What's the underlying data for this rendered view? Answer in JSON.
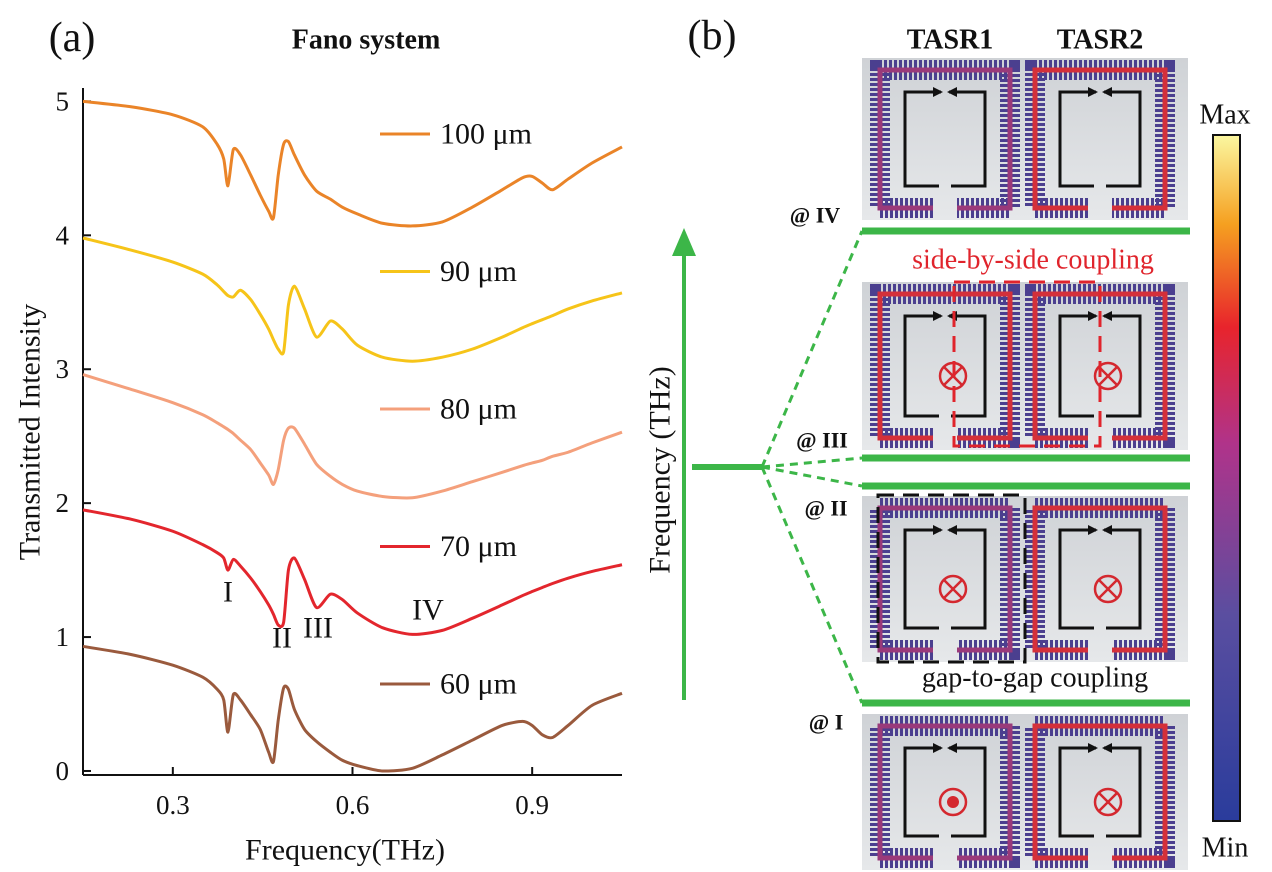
{
  "chart_data": {
    "type": "line",
    "title": "Fano system",
    "xlabel": "Frequency(THz)",
    "ylabel": "Transmitted Intensity",
    "x": [
      0.15,
      0.23,
      0.3,
      0.35,
      0.374,
      0.385,
      0.392,
      0.401,
      0.413,
      0.43,
      0.446,
      0.46,
      0.468,
      0.476,
      0.485,
      0.493,
      0.503,
      0.52,
      0.54,
      0.563,
      0.583,
      0.608,
      0.65,
      0.7,
      0.75,
      0.8,
      0.85,
      0.884,
      0.9,
      0.917,
      0.934,
      0.96,
      1.0,
      1.05
    ],
    "series": [
      {
        "name": "100 μm",
        "color": "#ea8428",
        "values": [
          5.0,
          4.96,
          4.9,
          4.81,
          4.68,
          4.57,
          4.37,
          4.64,
          4.6,
          4.45,
          4.3,
          4.18,
          4.13,
          4.45,
          4.68,
          4.7,
          4.6,
          4.45,
          4.33,
          4.27,
          4.21,
          4.16,
          4.09,
          4.07,
          4.1,
          4.21,
          4.34,
          4.43,
          4.44,
          4.39,
          4.34,
          4.42,
          4.54,
          4.66
        ]
      },
      {
        "name": "90 μm",
        "color": "#f6c419",
        "values": [
          3.98,
          3.89,
          3.8,
          3.71,
          3.63,
          3.58,
          3.55,
          3.54,
          3.59,
          3.52,
          3.41,
          3.3,
          3.22,
          3.15,
          3.13,
          3.48,
          3.62,
          3.45,
          3.24,
          3.36,
          3.3,
          3.18,
          3.09,
          3.06,
          3.09,
          3.15,
          3.24,
          3.31,
          3.34,
          3.37,
          3.4,
          3.45,
          3.51,
          3.57
        ]
      },
      {
        "name": "80 μm",
        "color": "#f4a07c",
        "values": [
          2.96,
          2.85,
          2.75,
          2.66,
          2.6,
          2.57,
          2.55,
          2.52,
          2.47,
          2.4,
          2.3,
          2.21,
          2.14,
          2.25,
          2.47,
          2.56,
          2.56,
          2.44,
          2.29,
          2.2,
          2.14,
          2.09,
          2.05,
          2.04,
          2.09,
          2.16,
          2.23,
          2.28,
          2.3,
          2.32,
          2.35,
          2.38,
          2.45,
          2.53
        ]
      },
      {
        "name": "70 μm",
        "color": "#e3262d",
        "values": [
          1.95,
          1.88,
          1.79,
          1.69,
          1.63,
          1.59,
          1.5,
          1.58,
          1.53,
          1.44,
          1.34,
          1.24,
          1.17,
          1.09,
          1.11,
          1.5,
          1.59,
          1.43,
          1.22,
          1.32,
          1.28,
          1.18,
          1.07,
          1.02,
          1.05,
          1.14,
          1.24,
          1.31,
          1.34,
          1.37,
          1.4,
          1.44,
          1.49,
          1.54
        ]
      },
      {
        "name": "60 μm",
        "color": "#9a5a3d",
        "values": [
          0.93,
          0.87,
          0.79,
          0.7,
          0.61,
          0.53,
          0.29,
          0.57,
          0.53,
          0.42,
          0.31,
          0.14,
          0.07,
          0.38,
          0.62,
          0.61,
          0.46,
          0.31,
          0.22,
          0.14,
          0.08,
          0.04,
          0.0,
          0.02,
          0.12,
          0.23,
          0.34,
          0.37,
          0.34,
          0.27,
          0.25,
          0.34,
          0.49,
          0.58
        ]
      }
    ],
    "annotations": [
      "I",
      "II",
      "III",
      "IV"
    ],
    "xlim": [
      0.15,
      1.05
    ],
    "xticks": [
      0.3,
      0.6,
      0.9
    ],
    "ylim": [
      -0.03,
      5.1
    ],
    "yticks": [
      0,
      1,
      2,
      3,
      4,
      5
    ],
    "grid": false
  },
  "panel_labels": {
    "a": "(a)",
    "b": "(b)"
  },
  "diagram": {
    "frequency_axis_label": "Frequency (THz)",
    "columns": [
      "TASR1",
      "TASR2"
    ],
    "states": [
      "@ IV",
      "@ III",
      "@ II",
      "@ I"
    ],
    "couplings": [
      "side-by-side coupling",
      "gap-to-gap coupling"
    ],
    "colorbar": {
      "max": "Max",
      "min": "Min"
    }
  }
}
